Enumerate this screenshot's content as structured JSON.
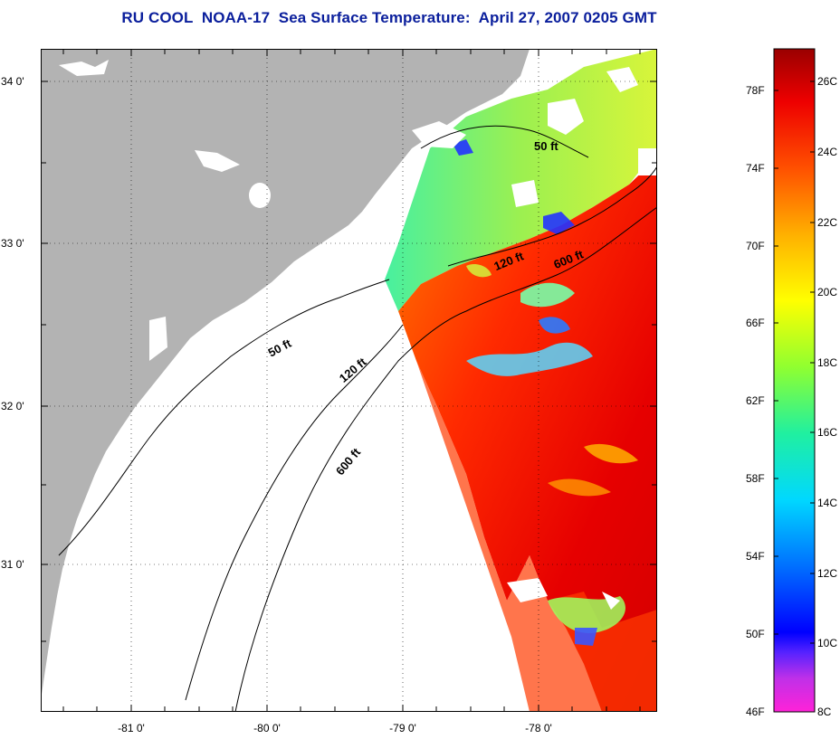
{
  "title": "RU COOL  NOAA-17  Sea Surface Temperature:  April 27, 2007 0205 GMT",
  "map": {
    "lon_range": [
      -81.65,
      -77.15
    ],
    "lat_range": [
      30.1,
      34.2
    ],
    "lat_labels": [
      "34 0'",
      "33 0'",
      "32 0'",
      "31 0'"
    ],
    "lon_labels": [
      "-81 0'",
      "-80 0'",
      "-79 0'",
      "-78 0'"
    ],
    "contour_labels": {
      "shelf_50": "50 ft",
      "shelf_120": "120 ft",
      "shelf_600": "600 ft",
      "offshore_50": "50 ft",
      "offshore_120": "120 ft",
      "offshore_600": "600 ft"
    },
    "colors": {
      "land": "#b3b3b3",
      "cloud": "#ffffff",
      "no_data": "#ffffff"
    }
  },
  "colorbar": {
    "fahrenheit_labels": [
      "78F",
      "74F",
      "70F",
      "66F",
      "62F",
      "58F",
      "54F",
      "50F",
      "46F"
    ],
    "celsius_labels": [
      "26C",
      "24C",
      "22C",
      "20C",
      "18C",
      "16C",
      "14C",
      "12C",
      "10C",
      "8C"
    ],
    "range_c": [
      8,
      27
    ],
    "stops": [
      "#ff22d8",
      "#8a2be2",
      "#0000ff",
      "#0070ff",
      "#00e0ff",
      "#20f0a0",
      "#90ff30",
      "#ffff00",
      "#ffb000",
      "#ff5000",
      "#ee0000",
      "#9a0000"
    ]
  }
}
